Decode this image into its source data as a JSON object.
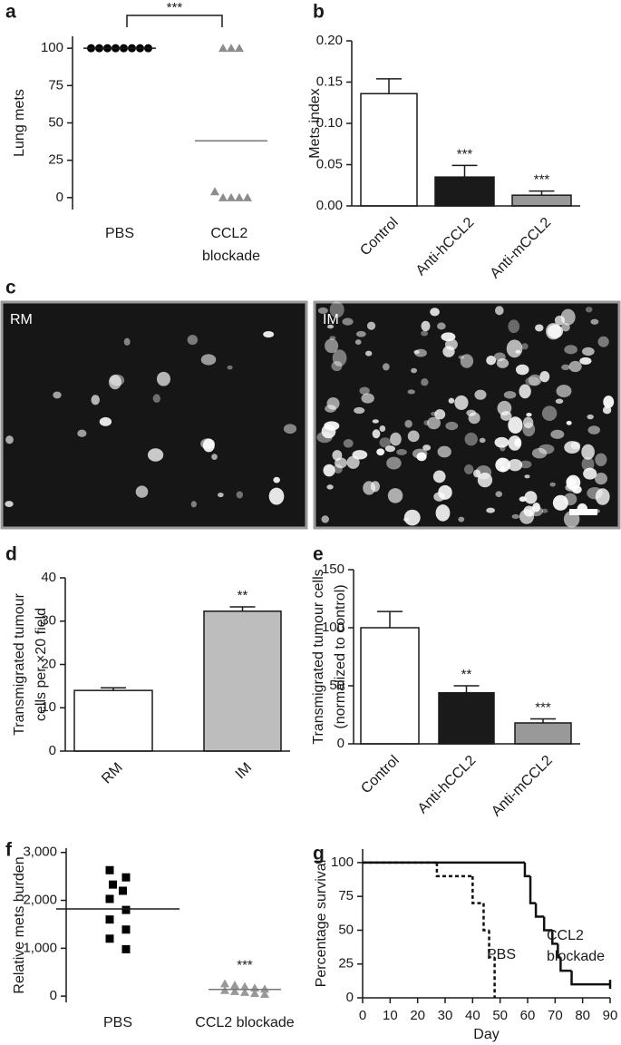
{
  "chart_data": [
    {
      "panel": "a",
      "type": "dot",
      "ylabel": "Lung mets",
      "categories": [
        "PBS",
        "CCL2 blockade"
      ],
      "values": [
        [
          100,
          100,
          100,
          100,
          100,
          100,
          100,
          100
        ],
        [
          100,
          100,
          100,
          4,
          0,
          0,
          0,
          0
        ]
      ],
      "means": [
        100,
        38
      ],
      "markers": [
        "circle",
        "triangle"
      ],
      "colors": [
        "#000000",
        "#8c8c8c"
      ],
      "ylim": [
        -8,
        108
      ],
      "yticks": [
        0,
        25,
        50,
        75,
        100
      ],
      "bracket": "***"
    },
    {
      "panel": "b",
      "type": "bar",
      "ylabel": "Mets index",
      "categories": [
        "Control",
        "Anti-hCCL2",
        "Anti-mCCL2"
      ],
      "values": [
        0.136,
        0.035,
        0.013
      ],
      "errors": [
        0.018,
        0.014,
        0.005
      ],
      "colors": [
        "#ffffff",
        "#1a1a1a",
        "#999999"
      ],
      "annotations": [
        null,
        "***",
        "***"
      ],
      "ylim": [
        0,
        0.2
      ],
      "yticks": [
        {
          "value": 0,
          "label": "0.00"
        },
        {
          "value": 0.05,
          "label": "0.05"
        },
        {
          "value": 0.1,
          "label": "0.10"
        },
        {
          "value": 0.15,
          "label": "0.15"
        },
        {
          "value": 0.2,
          "label": "0.20"
        }
      ]
    },
    {
      "panel": "c",
      "type": "image",
      "labels": [
        "RM",
        "IM"
      ]
    },
    {
      "panel": "d",
      "type": "bar",
      "ylabel": [
        "Transmigrated tumour",
        "cells per ×20 field"
      ],
      "categories": [
        "RM",
        "IM"
      ],
      "values": [
        14,
        32.3
      ],
      "errors": [
        0.6,
        1.0
      ],
      "colors": [
        "#ffffff",
        "#bdbdbd"
      ],
      "annotations": [
        null,
        "**"
      ],
      "ylim": [
        0,
        40
      ],
      "yticks": [
        0,
        10,
        20,
        30,
        40
      ]
    },
    {
      "panel": "e",
      "type": "bar",
      "ylabel": [
        "Transmigrated tumour cells",
        "(normalized to control)"
      ],
      "categories": [
        "Control",
        "Anti-hCCL2",
        "Anti-mCCL2"
      ],
      "values": [
        100,
        44,
        18
      ],
      "errors": [
        14,
        6,
        3.5
      ],
      "colors": [
        "#ffffff",
        "#1a1a1a",
        "#999999"
      ],
      "annotations": [
        null,
        "**",
        "***"
      ],
      "ylim": [
        0,
        150
      ],
      "yticks": [
        0,
        50,
        100,
        150
      ]
    },
    {
      "panel": "f",
      "type": "dot",
      "ylabel": "Relative mets burden",
      "categories": [
        "PBS",
        "CCL2 blockade"
      ],
      "values": [
        [
          2630,
          2480,
          2330,
          2200,
          2030,
          1800,
          1600,
          1390,
          1200,
          980
        ],
        [
          260,
          230,
          200,
          170,
          150,
          120,
          100,
          80,
          60,
          40
        ]
      ],
      "means": [
        1820,
        140
      ],
      "markers": [
        "square",
        "triangle"
      ],
      "colors": [
        "#000000",
        "#999999"
      ],
      "annotations": [
        null,
        "***"
      ],
      "ylim": [
        -130,
        3090
      ],
      "yticks": [
        0,
        {
          "value": 1000,
          "label": "1,000"
        },
        {
          "value": 2000,
          "label": "2,000"
        },
        {
          "value": 3000,
          "label": "3,000"
        }
      ]
    },
    {
      "panel": "g",
      "type": "step",
      "xlabel": "Day",
      "ylabel": "Percentage survival",
      "series": [
        {
          "name": "PBS",
          "line_style": "dashed",
          "x": [
            0,
            27,
            40,
            44,
            46,
            48
          ],
          "values": [
            100,
            90,
            70,
            50,
            30,
            0
          ]
        },
        {
          "name": "CCL2 blockade",
          "line_style": "solid",
          "x": [
            0,
            59,
            61,
            63,
            66,
            69,
            71,
            72,
            76,
            90
          ],
          "values": [
            100,
            90,
            70,
            60,
            50,
            40,
            30,
            20,
            10,
            10
          ]
        }
      ],
      "xlim": [
        0,
        90
      ],
      "xticks": [
        0,
        10,
        20,
        30,
        40,
        50,
        60,
        70,
        80,
        90
      ],
      "ylim": [
        0,
        110
      ],
      "yticks": [
        0,
        25,
        50,
        75,
        100
      ]
    }
  ]
}
